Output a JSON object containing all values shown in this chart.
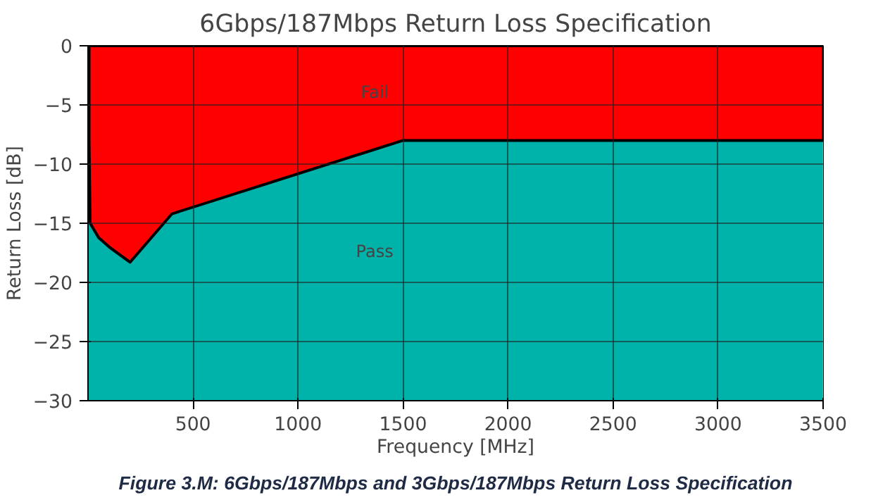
{
  "chart_data": {
    "type": "area",
    "title": "6Gbps/187Mbps Return Loss Specification",
    "xlabel": "Frequency [MHz]",
    "ylabel": "Return Loss [dB]",
    "x": [
      5,
      10,
      50,
      100,
      200,
      400,
      1500,
      3500
    ],
    "series": [
      {
        "color": "#ff0000",
        "values": [
          -8,
          -15,
          -16.2,
          -17,
          -18.3,
          -14.2,
          -8,
          -8
        ]
      }
    ],
    "bands": [
      {
        "axis": "y",
        "from": -30,
        "to": 0,
        "color": "#00b3aa"
      }
    ],
    "annotations": [
      "Fail",
      "Pass",
      "Figure 3.M: 6Gbps/187Mbps and 3Gbps/187Mbps Return Loss Specification"
    ],
    "xlim": [
      0,
      3500
    ],
    "ylim": [
      -30,
      0
    ],
    "xticks": [
      500,
      1000,
      1500,
      2000,
      2500,
      3000,
      3500
    ],
    "yticks": [
      -30,
      -25,
      -20,
      -15,
      -10,
      -5,
      0
    ],
    "grid": true
  }
}
